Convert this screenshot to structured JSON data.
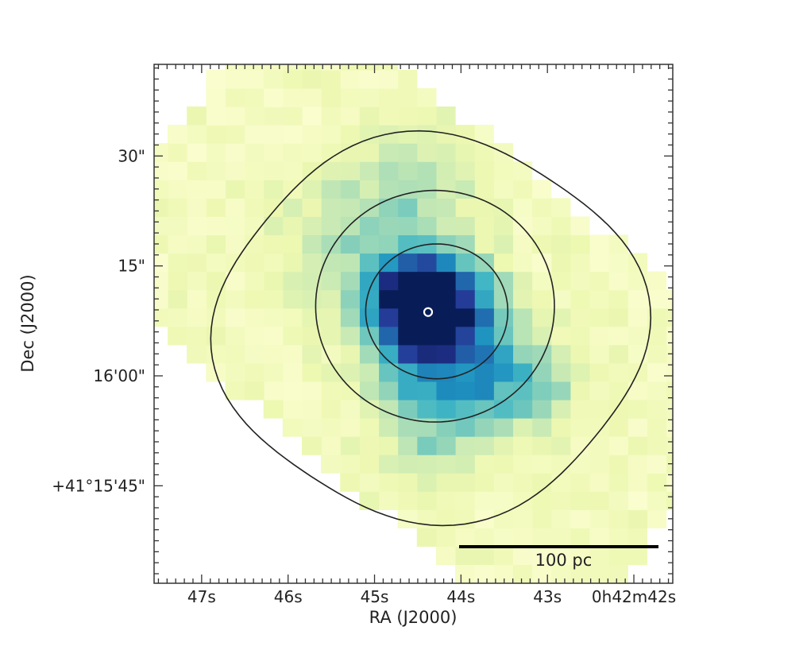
{
  "chart_data": {
    "type": "heatmap",
    "subtype": "sky image with contours",
    "xlabel": "RA (J2000)",
    "ylabel": "Dec (J2000)",
    "x_ticks": [
      {
        "label": "47s",
        "ra_s": 47.0
      },
      {
        "label": "46s",
        "ra_s": 46.0
      },
      {
        "label": "45s",
        "ra_s": 45.0
      },
      {
        "label": "44s",
        "ra_s": 44.0
      },
      {
        "label": "43s",
        "ra_s": 43.0
      },
      {
        "label": "0h42m42s",
        "ra_s": 42.0
      }
    ],
    "y_ticks": [
      {
        "label": "30\"",
        "dec_arcsec": 30
      },
      {
        "label": "15\"",
        "dec_arcsec": 15
      },
      {
        "label": "16'00\"",
        "dec_arcsec": 0
      },
      {
        "label": "+41°15'45\"",
        "dec_arcsec": -15
      }
    ],
    "x_range_ra_s": [
      47.55,
      41.55
    ],
    "y_range_dec_arcsec": [
      -28.3,
      42.5
    ],
    "scale_bar": {
      "label": "100 pc",
      "length_arcsec": 26.0,
      "placement": "bottom-right"
    },
    "nucleus_marker": {
      "ra_s": 44.38,
      "dec_arcsec": 8.7
    },
    "contours": [
      {
        "level": "inner",
        "center_ra_s": 44.28,
        "center_dec_arcsec": 8.8,
        "semi_major_arcsec": 9.7,
        "semi_minor_arcsec": 9.2
      },
      {
        "level": "middle",
        "center_ra_s": 44.3,
        "center_dec_arcsec": 9.5,
        "semi_major_arcsec": 16.3,
        "semi_minor_arcsec": 15.8
      },
      {
        "level": "outer",
        "center_ra_s": 44.35,
        "center_dec_arcsec": 6.5,
        "semi_major_arcsec": 29.0,
        "semi_minor_arcsec": 26.0
      }
    ],
    "field": {
      "description": "rotated rectangular map footprint",
      "rotation_deg": 40,
      "half_length_arcsec": 42,
      "half_width_arcsec": 24,
      "pixel_size_arcsec": 2.5
    },
    "intensity_peaks": [
      {
        "ra_s": 44.45,
        "dec_arcsec": 8.0,
        "amplitude": 1.0,
        "sigma_arcsec": 4.5
      },
      {
        "ra_s": 44.35,
        "dec_arcsec": 11.0,
        "amplitude": 0.6,
        "sigma_arcsec": 5.0
      },
      {
        "ra_s": 44.1,
        "dec_arcsec": 2.0,
        "amplitude": 0.35,
        "sigma_arcsec": 6.0
      },
      {
        "ra_s": 43.3,
        "dec_arcsec": -1.0,
        "amplitude": 0.3,
        "sigma_arcsec": 5.0
      },
      {
        "ra_s": 45.2,
        "dec_arcsec": 18.0,
        "amplitude": 0.25,
        "sigma_arcsec": 6.0
      },
      {
        "ra_s": 44.5,
        "dec_arcsec": 28.0,
        "amplitude": 0.2,
        "sigma_arcsec": 5.0
      },
      {
        "ra_s": 44.3,
        "dec_arcsec": -6.0,
        "amplitude": 0.25,
        "sigma_arcsec": 5.0
      }
    ],
    "colormap": [
      "#ffffd9",
      "#edf8b1",
      "#c7e9b4",
      "#7fcdbb",
      "#41b6c4",
      "#1d91c0",
      "#225ea8",
      "#253494",
      "#081d58"
    ]
  }
}
